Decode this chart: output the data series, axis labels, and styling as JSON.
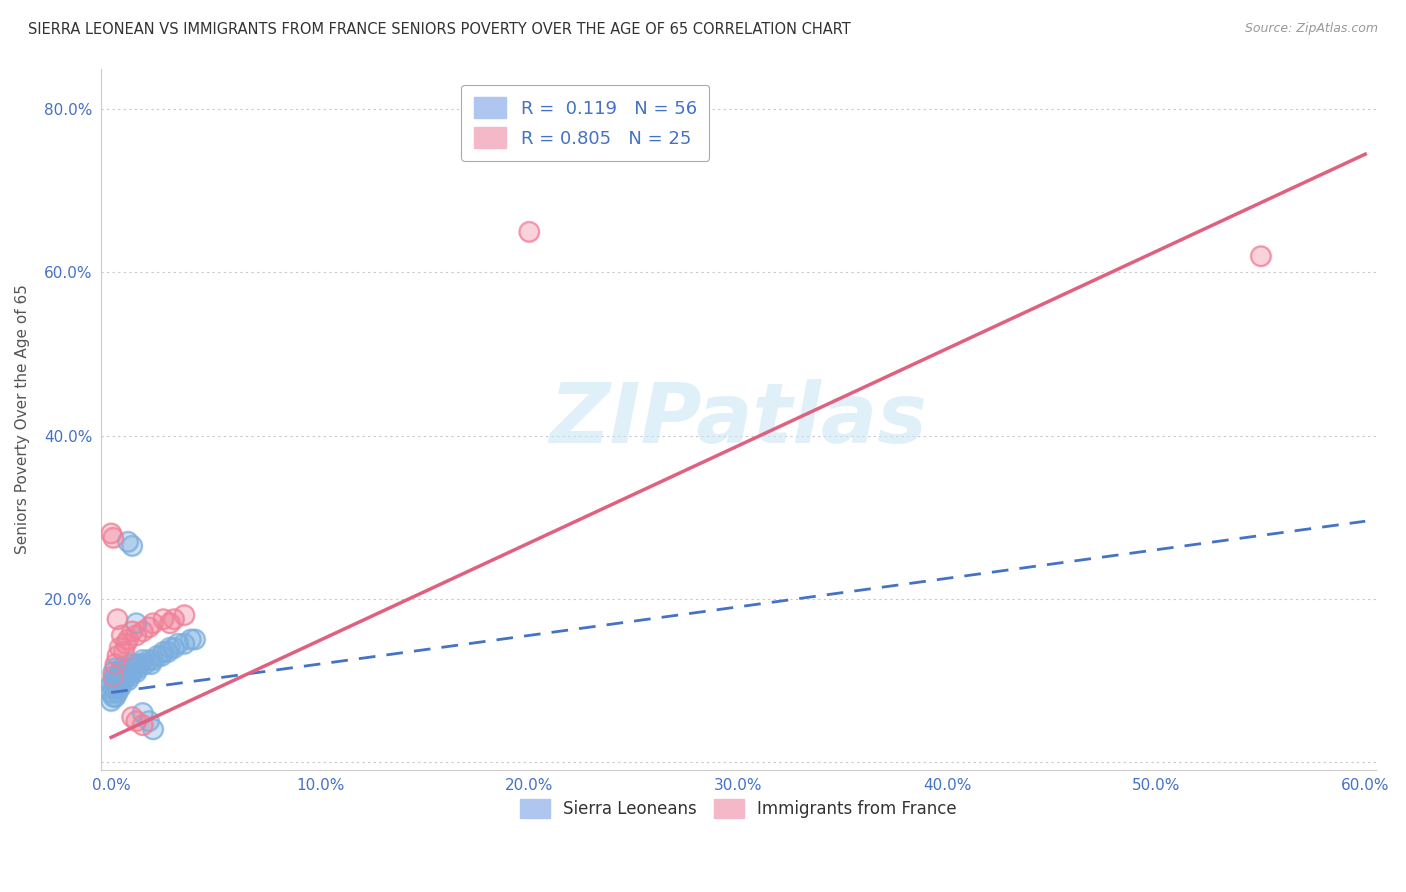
{
  "title": "SIERRA LEONEAN VS IMMIGRANTS FROM FRANCE SENIORS POVERTY OVER THE AGE OF 65 CORRELATION CHART",
  "source": "Source: ZipAtlas.com",
  "ylabel": "Seniors Poverty Over the Age of 65",
  "xlabel": "",
  "xlim": [
    -0.005,
    0.605
  ],
  "ylim": [
    -0.01,
    0.85
  ],
  "xticks": [
    0.0,
    0.1,
    0.2,
    0.3,
    0.4,
    0.5,
    0.6
  ],
  "yticks": [
    0.0,
    0.2,
    0.4,
    0.6,
    0.8
  ],
  "xticklabels": [
    "0.0%",
    "10.0%",
    "20.0%",
    "30.0%",
    "40.0%",
    "50.0%",
    "60.0%"
  ],
  "yticklabels": [
    "",
    "20.0%",
    "40.0%",
    "60.0%",
    "80.0%"
  ],
  "watermark": "ZIPatlas",
  "legend_blue_label": "R =  0.119   N = 56",
  "legend_pink_label": "R = 0.805   N = 25",
  "legend_blue_color": "#aec6f0",
  "legend_pink_color": "#f4b8c8",
  "scatter_blue_color": "#7baede",
  "scatter_pink_color": "#f08098",
  "line_blue_color": "#4472c4",
  "line_pink_color": "#e06080",
  "blue_R": 0.119,
  "pink_R": 0.805,
  "background_color": "#ffffff",
  "grid_color": "#c8c8c8",
  "blue_scatter_x": [
    0.0,
    0.0,
    0.0,
    0.001,
    0.001,
    0.001,
    0.001,
    0.002,
    0.002,
    0.002,
    0.002,
    0.003,
    0.003,
    0.003,
    0.004,
    0.004,
    0.004,
    0.005,
    0.005,
    0.005,
    0.006,
    0.006,
    0.007,
    0.007,
    0.008,
    0.008,
    0.009,
    0.009,
    0.01,
    0.01,
    0.011,
    0.012,
    0.012,
    0.013,
    0.014,
    0.015,
    0.016,
    0.018,
    0.019,
    0.02,
    0.022,
    0.024,
    0.025,
    0.027,
    0.028,
    0.03,
    0.032,
    0.035,
    0.038,
    0.04,
    0.008,
    0.01,
    0.012,
    0.015,
    0.018,
    0.02
  ],
  "blue_scatter_y": [
    0.095,
    0.085,
    0.075,
    0.11,
    0.1,
    0.09,
    0.08,
    0.115,
    0.1,
    0.09,
    0.08,
    0.105,
    0.095,
    0.085,
    0.11,
    0.1,
    0.09,
    0.115,
    0.105,
    0.095,
    0.11,
    0.1,
    0.115,
    0.105,
    0.11,
    0.1,
    0.115,
    0.105,
    0.12,
    0.11,
    0.115,
    0.12,
    0.11,
    0.115,
    0.12,
    0.125,
    0.12,
    0.125,
    0.12,
    0.125,
    0.13,
    0.13,
    0.135,
    0.135,
    0.14,
    0.14,
    0.145,
    0.145,
    0.15,
    0.15,
    0.27,
    0.265,
    0.17,
    0.06,
    0.05,
    0.04
  ],
  "pink_scatter_x": [
    0.0,
    0.001,
    0.001,
    0.002,
    0.003,
    0.003,
    0.004,
    0.005,
    0.006,
    0.007,
    0.008,
    0.01,
    0.012,
    0.015,
    0.018,
    0.02,
    0.025,
    0.028,
    0.03,
    0.035,
    0.2,
    0.55,
    0.01,
    0.012,
    0.015
  ],
  "pink_scatter_y": [
    0.28,
    0.275,
    0.105,
    0.12,
    0.175,
    0.13,
    0.14,
    0.155,
    0.135,
    0.145,
    0.15,
    0.16,
    0.155,
    0.16,
    0.165,
    0.17,
    0.175,
    0.17,
    0.175,
    0.18,
    0.65,
    0.62,
    0.055,
    0.05,
    0.045
  ],
  "pink_line_x0": 0.0,
  "pink_line_y0": 0.03,
  "pink_line_x1": 0.6,
  "pink_line_y1": 0.745,
  "blue_line_x0": 0.0,
  "blue_line_y0": 0.085,
  "blue_line_x1": 0.6,
  "blue_line_y1": 0.295
}
